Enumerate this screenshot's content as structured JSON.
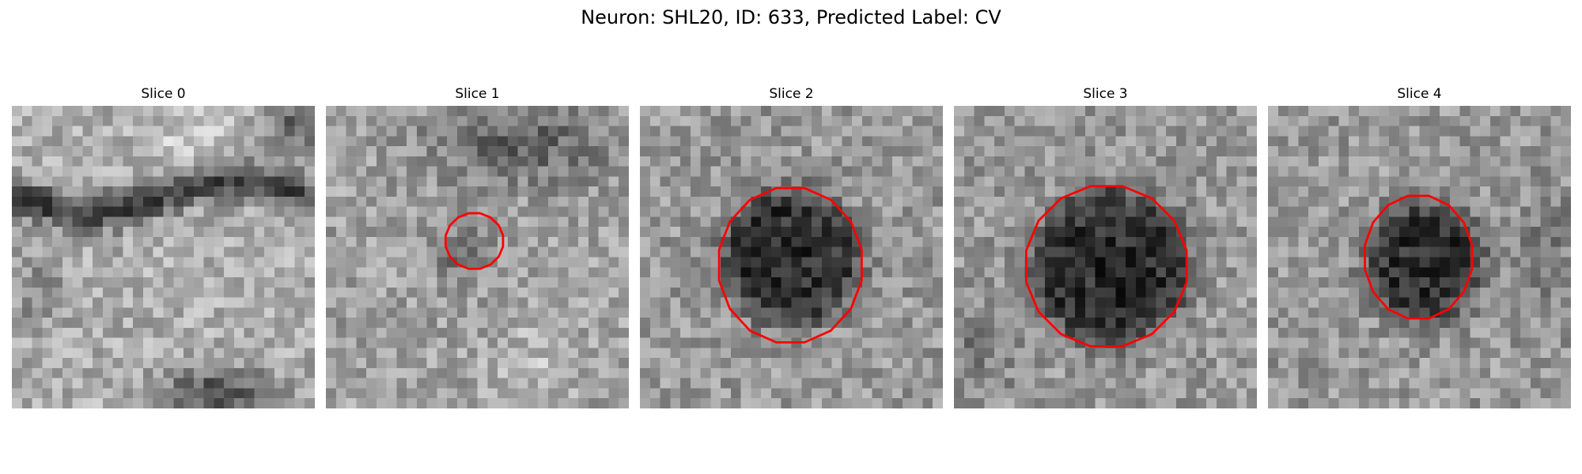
{
  "figure": {
    "title": "Neuron: SHL20, ID: 633, Predicted Label: CV"
  },
  "panels": [
    {
      "title": "Slice 0",
      "has_contour": false
    },
    {
      "title": "Slice 1",
      "has_contour": true
    },
    {
      "title": "Slice 2",
      "has_contour": true
    },
    {
      "title": "Slice 3",
      "has_contour": true
    },
    {
      "title": "Slice 4",
      "has_contour": true
    }
  ],
  "colors": {
    "contour": "#ff0000",
    "background": "#ffffff"
  }
}
